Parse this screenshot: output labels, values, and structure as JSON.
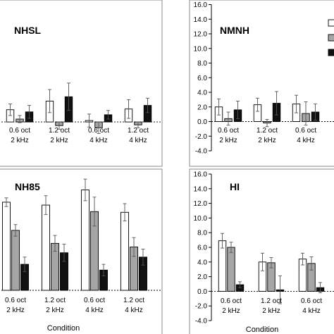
{
  "colors": {
    "white_bar": "#ffffff",
    "gray_bar": "#a6a6a6",
    "black_bar": "#111111",
    "frame": "#888888"
  },
  "chart_data": [
    {
      "type": "bar",
      "title": "NHSL",
      "ylim": [
        -4.0,
        16.0
      ],
      "categories": [
        [
          "0.6 oct",
          "2 kHz"
        ],
        [
          "1.2 oct",
          "2 kHz"
        ],
        [
          "0.6 oct",
          "4 kHz"
        ],
        [
          "1.2 oct",
          "4 kHz"
        ]
      ],
      "series": [
        {
          "fill": "white",
          "values": [
            1.7,
            2.9,
            0.2,
            1.8
          ],
          "errors": [
            0.8,
            1.6,
            0.9,
            1.3
          ]
        },
        {
          "fill": "gray",
          "values": [
            0.4,
            -0.5,
            -0.8,
            -0.4
          ],
          "errors": [
            0.5,
            0.5,
            0.8,
            0.4
          ]
        },
        {
          "fill": "black",
          "values": [
            1.4,
            3.5,
            1.0,
            2.3
          ],
          "errors": [
            0.9,
            1.9,
            0.6,
            1.0
          ]
        }
      ],
      "xlabel": "",
      "ylabel": ""
    },
    {
      "type": "bar",
      "title": "NMNH",
      "ylim": [
        -4.0,
        16.0
      ],
      "yticks": [
        "-4.0",
        "-2.0",
        "0.0",
        "2.0",
        "4.0",
        "6.0",
        "8.0",
        "10.0",
        "12.0",
        "14.0",
        "16.0"
      ],
      "categories": [
        [
          "0.6 oct",
          "2 kHz"
        ],
        [
          "1.2 oct",
          "2 kHz"
        ],
        [
          "0.6 oct",
          "4 kHz"
        ]
      ],
      "series": [
        {
          "fill": "white",
          "values": [
            2.0,
            2.3,
            2.4
          ],
          "errors": [
            1.1,
            0.9,
            1.2
          ]
        },
        {
          "fill": "gray",
          "values": [
            0.4,
            -0.2,
            1.1
          ],
          "errors": [
            0.9,
            0.5,
            1.6
          ]
        },
        {
          "fill": "black",
          "values": [
            1.6,
            2.5,
            1.3
          ],
          "errors": [
            1.2,
            1.6,
            1.1
          ]
        }
      ],
      "xlabel": "",
      "ylabel": ""
    },
    {
      "type": "bar",
      "title": "NH85",
      "ylim": [
        -4.0,
        16.0
      ],
      "categories": [
        [
          "0.6 oct",
          "2 kHz"
        ],
        [
          "1.2 oct",
          "2 kHz"
        ],
        [
          "0.6 oct",
          "4 kHz"
        ],
        [
          "1.2 oct",
          "4 kHz"
        ]
      ],
      "series": [
        {
          "fill": "white",
          "values": [
            12.2,
            11.8,
            13.9,
            10.8
          ],
          "errors": [
            0.6,
            1.3,
            1.5,
            1.2
          ]
        },
        {
          "fill": "gray",
          "values": [
            8.3,
            6.5,
            10.9,
            6.0
          ],
          "errors": [
            0.8,
            1.1,
            2.0,
            1.3
          ]
        },
        {
          "fill": "black",
          "values": [
            3.6,
            5.2,
            2.8,
            4.6
          ],
          "errors": [
            1.0,
            1.2,
            0.8,
            1.1
          ]
        }
      ],
      "xlabel": "Condition",
      "ylabel": ""
    },
    {
      "type": "bar",
      "title": "HI",
      "ylim": [
        -4.0,
        16.0
      ],
      "yticks": [
        "-4.0",
        "-2.0",
        "0.0",
        "2.0",
        "4.0",
        "6.0",
        "8.0",
        "10.0",
        "12.0",
        "14.0",
        "16.0"
      ],
      "categories": [
        [
          "0.6 oct",
          "2 kHz"
        ],
        [
          "1.2 oct",
          "2 kHz"
        ],
        [
          "0.6 oct",
          "4 kHz"
        ]
      ],
      "series": [
        {
          "fill": "white",
          "values": [
            6.9,
            4.0,
            4.4
          ],
          "errors": [
            1.0,
            1.2,
            0.8
          ]
        },
        {
          "fill": "gray",
          "values": [
            6.0,
            3.9,
            3.8
          ],
          "errors": [
            0.7,
            0.7,
            0.9
          ]
        },
        {
          "fill": "black",
          "values": [
            0.9,
            0.2,
            0.5
          ],
          "errors": [
            0.4,
            1.9,
            0.7
          ]
        }
      ],
      "xlabel": "Condition",
      "ylabel": ""
    }
  ]
}
